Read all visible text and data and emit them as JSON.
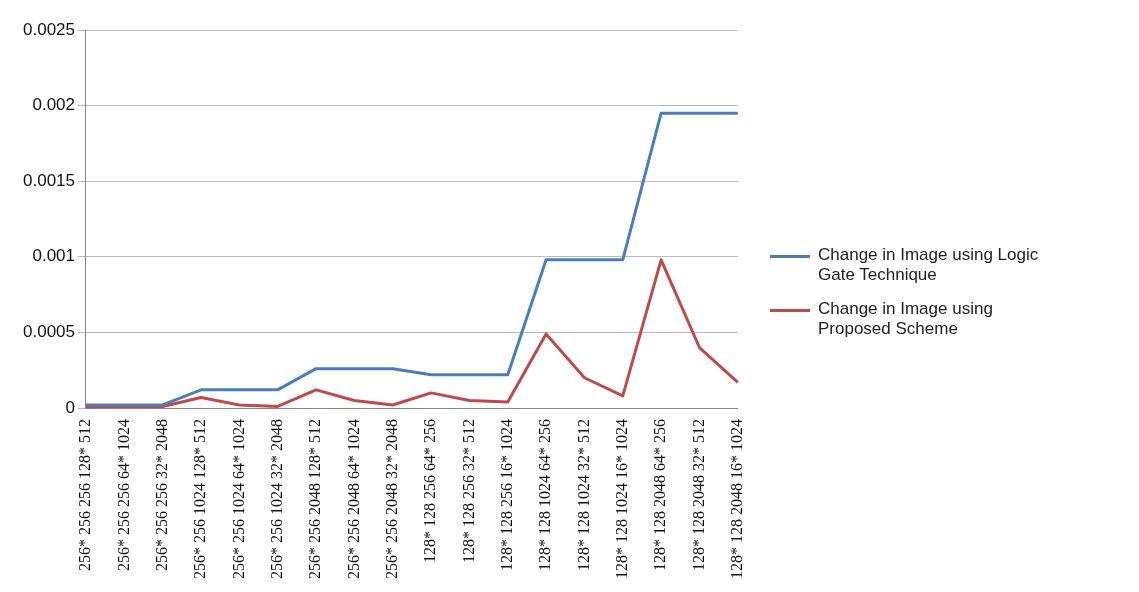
{
  "chart_data": {
    "type": "line",
    "categories": [
      "256* 256 256 128* 512",
      "256* 256 256 64* 1024",
      "256* 256 256 32* 2048",
      "256* 256 1024 128* 512",
      "256* 256 1024 64* 1024",
      "256* 256 1024 32* 2048",
      "256* 256 2048 128* 512",
      "256* 256 2048 64* 1024",
      "256* 256 2048 32* 2048",
      "128* 128 256 64* 256",
      "128* 128 256 32* 512",
      "128* 128 256 16* 1024",
      "128* 128 1024 64* 256",
      "128* 128 1024 32* 512",
      "128* 128 1024 16* 1024",
      "128* 128 2048 64* 256",
      "128* 128 2048 32* 512",
      "128* 128 2048 16* 1024"
    ],
    "series": [
      {
        "name": "Change in Image using Logic Gate Technique",
        "color": "#4a7ebb",
        "values": [
          2e-05,
          2e-05,
          2e-05,
          0.00012,
          0.00012,
          0.00012,
          0.00026,
          0.00026,
          0.00026,
          0.00022,
          0.00022,
          0.00022,
          0.00098,
          0.00098,
          0.00098,
          0.00195,
          0.00195,
          0.00195
        ]
      },
      {
        "name": "Change in Image using Proposed Scheme",
        "color": "#be4b48",
        "values": [
          1e-05,
          1e-05,
          1e-05,
          7e-05,
          2e-05,
          1e-05,
          0.00012,
          5e-05,
          2e-05,
          0.0001,
          5e-05,
          4e-05,
          0.00049,
          0.0002,
          8e-05,
          0.00098,
          0.0004,
          0.00017
        ]
      }
    ],
    "ylim": [
      0,
      0.0025
    ],
    "yticks": [
      0,
      0.0005,
      0.001,
      0.0015,
      0.002,
      0.0025
    ],
    "grid": "y",
    "legend": "right",
    "marker": "none",
    "line_style": "solid"
  }
}
